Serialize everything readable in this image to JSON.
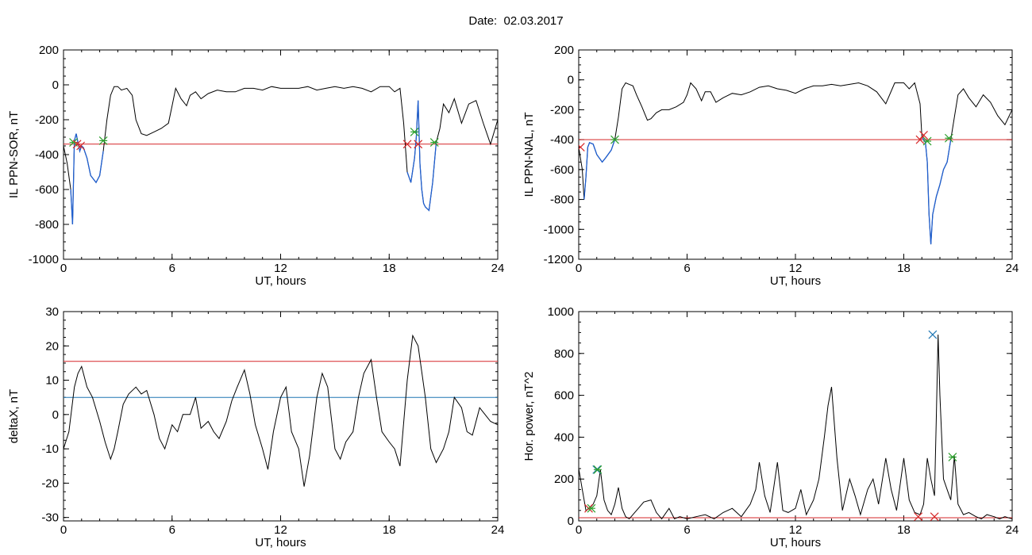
{
  "title": "Date:  02.03.2017",
  "colors": {
    "trace": "#000000",
    "threshold_red": "#d62728",
    "threshold_blue": "#1f77b4",
    "substorm_segment": "#1f5fd0",
    "marker_red": "#d62728",
    "marker_green": "#2ca02c",
    "marker_blue": "#1f77b4"
  },
  "chart_data": [
    {
      "id": "il-sor",
      "type": "line",
      "xlabel": "UT, hours",
      "ylabel": "IL PPN-SOR, nT",
      "xlim": [
        0,
        24
      ],
      "ylim": [
        -1000,
        200
      ],
      "xticks": [
        0,
        6,
        12,
        18,
        24
      ],
      "yticks": [
        -1000,
        -800,
        -600,
        -400,
        -200,
        0,
        200
      ],
      "series": [
        {
          "x": [
            0,
            0.2,
            0.4,
            0.5,
            0.6,
            0.7,
            0.8,
            0.9,
            1.0,
            1.1,
            1.3,
            1.5,
            1.8,
            2.0,
            2.2,
            2.4,
            2.6,
            2.8,
            3.0,
            3.2,
            3.5,
            3.8,
            4.0,
            4.3,
            4.6,
            5.0,
            5.4,
            5.8,
            6.0,
            6.2,
            6.5,
            6.8,
            7.0,
            7.3,
            7.6,
            8.0,
            8.5,
            9.0,
            9.5,
            10.0,
            10.5,
            11.0,
            11.5,
            12.0,
            12.5,
            13.0,
            13.5,
            14.0,
            14.5,
            15.0,
            15.5,
            16.0,
            16.5,
            17.0,
            17.5,
            18.0,
            18.3,
            18.6,
            18.8,
            19.0,
            19.2,
            19.4,
            19.5,
            19.6,
            19.7,
            19.8,
            19.9,
            20.0,
            20.2,
            20.4,
            20.6,
            20.8,
            21.0,
            21.3,
            21.6,
            22.0,
            22.4,
            22.8,
            23.2,
            23.6,
            24.0
          ],
          "y": [
            -350,
            -450,
            -600,
            -800,
            -320,
            -280,
            -330,
            -380,
            -350,
            -360,
            -420,
            -520,
            -560,
            -520,
            -380,
            -200,
            -60,
            -10,
            -10,
            -30,
            -20,
            -60,
            -200,
            -280,
            -290,
            -270,
            -250,
            -220,
            -120,
            -20,
            -80,
            -120,
            -60,
            -40,
            -80,
            -50,
            -30,
            -40,
            -40,
            -20,
            -20,
            -30,
            -10,
            -20,
            -20,
            -20,
            -10,
            -30,
            -20,
            -10,
            -20,
            -10,
            -20,
            -40,
            -10,
            -10,
            -40,
            -20,
            -220,
            -500,
            -560,
            -420,
            -300,
            -90,
            -450,
            -600,
            -680,
            -700,
            -720,
            -560,
            -330,
            -250,
            -110,
            -160,
            -80,
            -220,
            -110,
            -90,
            -220,
            -340,
            -200
          ]
        }
      ],
      "threshold_lines": [
        {
          "y": -340,
          "color": "red"
        }
      ],
      "substorm_segments": [
        [
          0.3,
          2.2
        ],
        [
          19.0,
          20.6
        ]
      ],
      "markers": [
        {
          "x": 0.55,
          "y": -330,
          "symbol": "asterisk",
          "color": "green"
        },
        {
          "x": 0.75,
          "y": -340,
          "symbol": "x",
          "color": "red"
        },
        {
          "x": 0.95,
          "y": -350,
          "symbol": "x",
          "color": "red"
        },
        {
          "x": 2.2,
          "y": -320,
          "symbol": "asterisk",
          "color": "green"
        },
        {
          "x": 19.0,
          "y": -340,
          "symbol": "x",
          "color": "red"
        },
        {
          "x": 19.4,
          "y": -270,
          "symbol": "asterisk",
          "color": "green"
        },
        {
          "x": 19.6,
          "y": -340,
          "symbol": "x",
          "color": "red"
        },
        {
          "x": 20.5,
          "y": -330,
          "symbol": "asterisk",
          "color": "green"
        }
      ]
    },
    {
      "id": "il-nal",
      "type": "line",
      "xlabel": "UT, hours",
      "ylabel": "IL PPN-NAL, nT",
      "xlim": [
        0,
        24
      ],
      "ylim": [
        -1200,
        200
      ],
      "xticks": [
        0,
        6,
        12,
        18,
        24
      ],
      "yticks": [
        -1200,
        -1000,
        -800,
        -600,
        -400,
        -200,
        0,
        200
      ],
      "series": [
        {
          "x": [
            0,
            0.2,
            0.3,
            0.4,
            0.5,
            0.6,
            0.8,
            1.0,
            1.3,
            1.5,
            1.8,
            2.0,
            2.2,
            2.4,
            2.6,
            2.8,
            3.0,
            3.2,
            3.5,
            3.8,
            4.0,
            4.3,
            4.6,
            5.0,
            5.4,
            5.8,
            6.0,
            6.2,
            6.5,
            6.8,
            7.0,
            7.3,
            7.6,
            8.0,
            8.5,
            9.0,
            9.5,
            10.0,
            10.5,
            11.0,
            11.5,
            12.0,
            12.5,
            13.0,
            13.5,
            14.0,
            14.5,
            15.0,
            15.5,
            16.0,
            16.5,
            17.0,
            17.5,
            18.0,
            18.3,
            18.6,
            18.9,
            19.0,
            19.1,
            19.2,
            19.3,
            19.4,
            19.5,
            19.6,
            19.8,
            20.0,
            20.2,
            20.4,
            20.6,
            20.8,
            21.0,
            21.3,
            21.6,
            22.0,
            22.4,
            22.8,
            23.2,
            23.6,
            24.0
          ],
          "y": [
            -450,
            -600,
            -800,
            -650,
            -450,
            -420,
            -430,
            -500,
            -550,
            -520,
            -470,
            -400,
            -250,
            -60,
            -20,
            -30,
            -40,
            -100,
            -180,
            -270,
            -260,
            -220,
            -200,
            -200,
            -180,
            -150,
            -100,
            -20,
            -60,
            -140,
            -80,
            -80,
            -150,
            -120,
            -90,
            -100,
            -80,
            -50,
            -40,
            -60,
            -70,
            -90,
            -60,
            -40,
            -40,
            -30,
            -40,
            -30,
            -20,
            -40,
            -80,
            -160,
            -20,
            -20,
            -60,
            -20,
            -160,
            -380,
            -400,
            -420,
            -550,
            -900,
            -1100,
            -900,
            -780,
            -700,
            -600,
            -550,
            -400,
            -250,
            -100,
            -60,
            -120,
            -180,
            -100,
            -150,
            -240,
            -300,
            -200
          ]
        }
      ],
      "threshold_lines": [
        {
          "y": -400,
          "color": "red"
        }
      ],
      "substorm_segments": [
        [
          0.3,
          2.0
        ],
        [
          19.0,
          20.6
        ]
      ],
      "markers": [
        {
          "x": 0.1,
          "y": -450,
          "symbol": "x",
          "color": "red"
        },
        {
          "x": 2.0,
          "y": -400,
          "symbol": "asterisk",
          "color": "green"
        },
        {
          "x": 18.9,
          "y": -400,
          "symbol": "x",
          "color": "red"
        },
        {
          "x": 19.1,
          "y": -370,
          "symbol": "x",
          "color": "red"
        },
        {
          "x": 19.3,
          "y": -410,
          "symbol": "asterisk",
          "color": "green"
        },
        {
          "x": 20.5,
          "y": -390,
          "symbol": "asterisk",
          "color": "green"
        }
      ]
    },
    {
      "id": "deltax",
      "type": "line",
      "xlabel": "UT, hours",
      "ylabel": "deltaX, nT",
      "xlim": [
        0,
        24
      ],
      "ylim": [
        -31,
        30
      ],
      "xticks": [
        0,
        6,
        12,
        18,
        24
      ],
      "yticks": [
        -30,
        -20,
        -10,
        0,
        10,
        20,
        30
      ],
      "series": [
        {
          "x": [
            0,
            0.3,
            0.6,
            0.8,
            1.0,
            1.3,
            1.6,
            2.0,
            2.3,
            2.6,
            2.8,
            3.0,
            3.3,
            3.6,
            4.0,
            4.3,
            4.6,
            5.0,
            5.3,
            5.6,
            6.0,
            6.3,
            6.6,
            7.0,
            7.3,
            7.6,
            8.0,
            8.3,
            8.6,
            9.0,
            9.3,
            9.6,
            10.0,
            10.3,
            10.6,
            11.0,
            11.3,
            11.6,
            12.0,
            12.3,
            12.6,
            13.0,
            13.3,
            13.6,
            14.0,
            14.3,
            14.6,
            15.0,
            15.3,
            15.6,
            16.0,
            16.3,
            16.6,
            17.0,
            17.3,
            17.6,
            18.0,
            18.3,
            18.6,
            19.0,
            19.3,
            19.6,
            20.0,
            20.3,
            20.6,
            21.0,
            21.3,
            21.6,
            22.0,
            22.3,
            22.6,
            23.0,
            23.3,
            23.6,
            24.0
          ],
          "y": [
            -10,
            -5,
            8,
            12,
            14,
            8,
            5,
            -2,
            -8,
            -13,
            -10,
            -5,
            3,
            6,
            8,
            6,
            7,
            0,
            -7,
            -10,
            -3,
            -5,
            0,
            0,
            5,
            -4,
            -2,
            -5,
            -7,
            -2,
            4,
            8,
            13,
            6,
            -3,
            -10,
            -16,
            -5,
            5,
            8,
            -5,
            -10,
            -21,
            -12,
            5,
            12,
            8,
            -10,
            -13,
            -8,
            -5,
            5,
            12,
            16,
            5,
            -5,
            -8,
            -10,
            -15,
            10,
            23,
            20,
            5,
            -10,
            -14,
            -10,
            -5,
            5,
            2,
            -5,
            -6,
            2,
            0,
            -2,
            -3
          ]
        }
      ],
      "threshold_lines": [
        {
          "y": 15.5,
          "color": "red"
        },
        {
          "y": 5,
          "color": "blue"
        }
      ],
      "substorm_segments": [],
      "markers": []
    },
    {
      "id": "hor-power",
      "type": "line",
      "xlabel": "UT, hours",
      "ylabel": "Hor. power, nT^2",
      "xlim": [
        0,
        24
      ],
      "ylim": [
        0,
        1000
      ],
      "xticks": [
        0,
        6,
        12,
        18,
        24
      ],
      "yticks": [
        0,
        200,
        400,
        600,
        800,
        1000
      ],
      "series": [
        {
          "x": [
            0,
            0.2,
            0.4,
            0.6,
            0.8,
            1.0,
            1.2,
            1.4,
            1.6,
            1.8,
            2.0,
            2.2,
            2.4,
            2.6,
            2.8,
            3.0,
            3.3,
            3.6,
            4.0,
            4.3,
            4.6,
            5.0,
            5.3,
            5.6,
            6.0,
            6.5,
            7.0,
            7.5,
            8.0,
            8.5,
            9.0,
            9.5,
            9.8,
            10.0,
            10.3,
            10.6,
            11.0,
            11.3,
            11.6,
            12.0,
            12.3,
            12.6,
            13.0,
            13.3,
            13.6,
            13.8,
            14.0,
            14.3,
            14.6,
            15.0,
            15.3,
            15.6,
            16.0,
            16.3,
            16.6,
            17.0,
            17.3,
            17.6,
            18.0,
            18.3,
            18.6,
            18.9,
            19.1,
            19.3,
            19.5,
            19.7,
            19.8,
            19.9,
            20.0,
            20.2,
            20.4,
            20.6,
            20.8,
            21.0,
            21.3,
            21.6,
            22.0,
            22.3,
            22.6,
            23.0,
            23.3,
            23.6,
            24.0
          ],
          "y": [
            250,
            150,
            50,
            60,
            80,
            120,
            245,
            100,
            50,
            30,
            80,
            160,
            60,
            20,
            10,
            30,
            60,
            90,
            100,
            40,
            10,
            60,
            10,
            20,
            10,
            20,
            30,
            10,
            40,
            60,
            20,
            80,
            150,
            280,
            120,
            40,
            280,
            50,
            40,
            60,
            150,
            30,
            100,
            200,
            400,
            550,
            640,
            300,
            50,
            200,
            120,
            30,
            150,
            200,
            80,
            300,
            150,
            50,
            300,
            100,
            40,
            30,
            80,
            300,
            200,
            120,
            500,
            890,
            600,
            200,
            150,
            100,
            310,
            80,
            30,
            40,
            20,
            10,
            30,
            20,
            10,
            20,
            10
          ]
        }
      ],
      "threshold_lines": [
        {
          "y": 15,
          "color": "red"
        }
      ],
      "substorm_segments": [],
      "markers": [
        {
          "x": 0.55,
          "y": 60,
          "symbol": "x",
          "color": "red"
        },
        {
          "x": 0.7,
          "y": 60,
          "symbol": "asterisk",
          "color": "green"
        },
        {
          "x": 1.0,
          "y": 245,
          "symbol": "x",
          "color": "blue"
        },
        {
          "x": 1.05,
          "y": 245,
          "symbol": "asterisk",
          "color": "green"
        },
        {
          "x": 18.8,
          "y": 20,
          "symbol": "x",
          "color": "red"
        },
        {
          "x": 19.6,
          "y": 890,
          "symbol": "x",
          "color": "blue"
        },
        {
          "x": 19.7,
          "y": 20,
          "symbol": "x",
          "color": "red"
        },
        {
          "x": 20.7,
          "y": 305,
          "symbol": "asterisk",
          "color": "green"
        }
      ]
    }
  ]
}
